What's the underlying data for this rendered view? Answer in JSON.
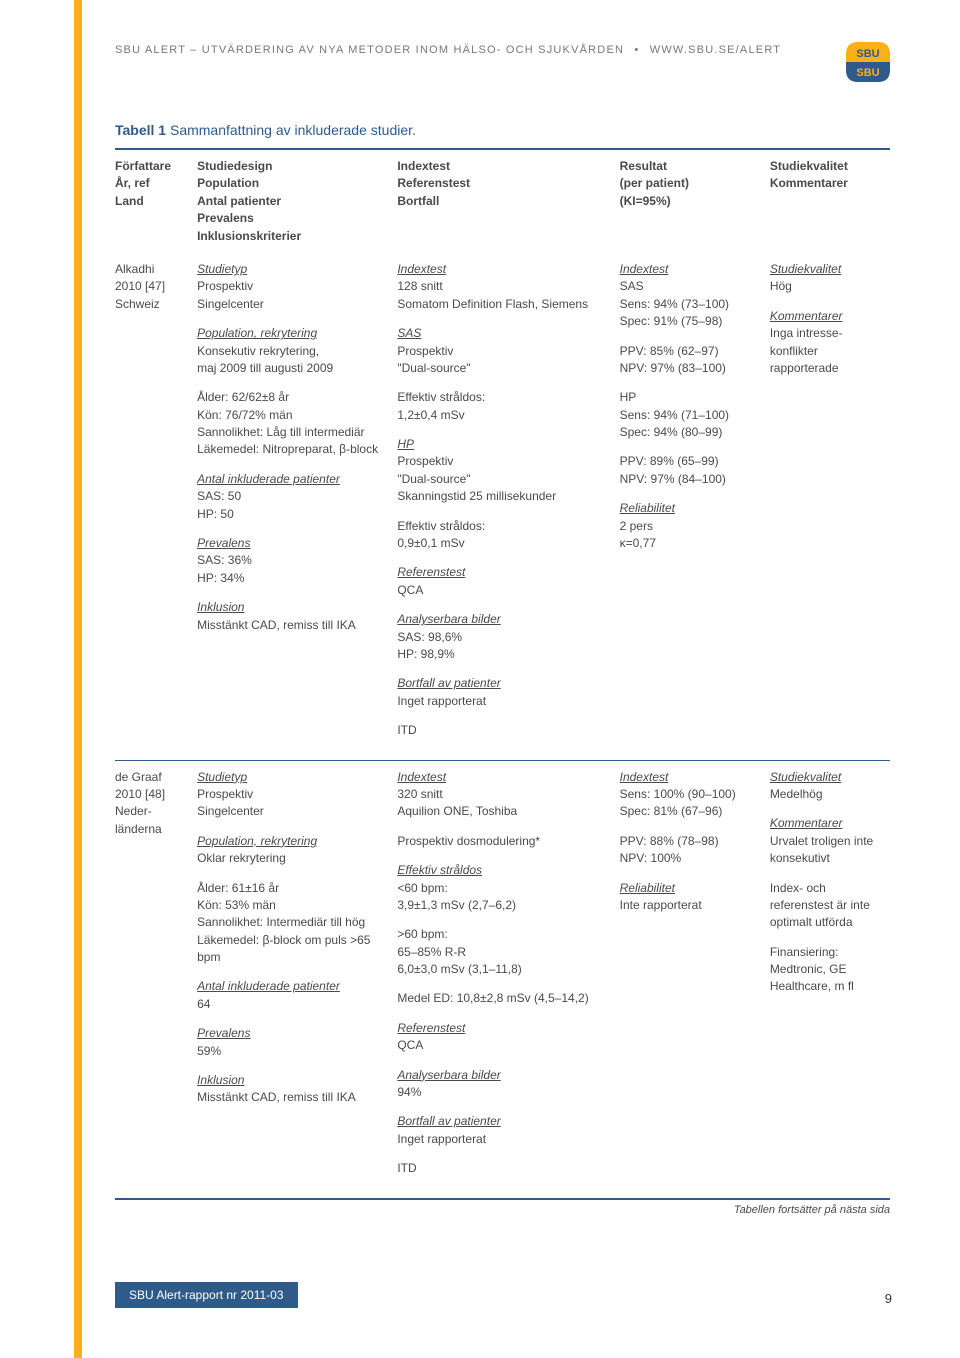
{
  "header": {
    "line": "SBU ALERT – UTVÄRDERING AV NYA METODER INOM HÄLSO- OCH SJUKVÅRDEN",
    "url": "WWW.SBU.SE/ALERT"
  },
  "table": {
    "title_bold": "Tabell 1",
    "title_rest": " Sammanfattning av inkluderade studier.",
    "headers": {
      "c1": "Författare\nÅr, ref\nLand",
      "c2": "Studiedesign\nPopulation\nAntal patienter\nPrevalens\nInklusionskriterier",
      "c3": "Indextest\nReferenstest\nBortfall",
      "c4": "Resultat\n(per patient)\n(KI=95%)",
      "c5": "Studiekvalitet\nKommentarer"
    },
    "rows": [
      {
        "author": "Alkadhi\n2010 [47]\nSchweiz",
        "col2": [
          {
            "lbl": "Studietyp",
            "body": "Prospektiv\nSingelcenter"
          },
          {
            "lbl": "Population, rekrytering",
            "body": "Konsekutiv rekrytering,\nmaj 2009 till augusti 2009"
          },
          {
            "lbl": "",
            "body": "Ålder: 62/62±8 år\nKön: 76/72% män\nSannolikhet: Låg till intermediär\nLäkemedel: Nitropreparat, β-block"
          },
          {
            "lbl": "Antal inkluderade patienter",
            "body": "SAS: 50\nHP: 50"
          },
          {
            "lbl": "Prevalens",
            "body": "SAS: 36%\nHP: 34%"
          },
          {
            "lbl": "Inklusion",
            "body": "Misstänkt CAD, remiss till IKA"
          }
        ],
        "col3": [
          {
            "lbl": "Indextest",
            "body": "128 snitt\nSomatom Definition Flash, Siemens"
          },
          {
            "lbl": "SAS",
            "body": "Prospektiv\n\"Dual-source\""
          },
          {
            "lbl": "",
            "body": "Effektiv stråldos:\n1,2±0,4 mSv"
          },
          {
            "lbl": "HP",
            "body": "Prospektiv\n\"Dual-source\"\nSkanningstid 25 millisekunder"
          },
          {
            "lbl": "",
            "body": "Effektiv stråldos:\n0,9±0,1 mSv"
          },
          {
            "lbl": "Referenstest",
            "body": "QCA"
          },
          {
            "lbl": "Analyserbara bilder",
            "body": "SAS: 98,6%\nHP: 98,9%"
          },
          {
            "lbl": "Bortfall av patienter",
            "body": "Inget rapporterat"
          },
          {
            "lbl": "",
            "body": "ITD"
          }
        ],
        "col4": [
          {
            "lbl": "Indextest",
            "body": "SAS\nSens: 94% (73–100)\nSpec: 91% (75–98)"
          },
          {
            "lbl": "",
            "body": "PPV: 85% (62–97)\nNPV: 97% (83–100)"
          },
          {
            "lbl": "",
            "body": "HP\nSens: 94% (71–100)\nSpec: 94% (80–99)"
          },
          {
            "lbl": "",
            "body": "PPV: 89% (65–99)\nNPV: 97% (84–100)"
          },
          {
            "lbl": "Reliabilitet",
            "body": "2 pers\nκ=0,77"
          }
        ],
        "col5": [
          {
            "lbl": "Studiekvalitet",
            "body": "Hög"
          },
          {
            "lbl": "Kommentarer",
            "body": "Inga intresse­konflikter rapporterade"
          }
        ]
      },
      {
        "author": "de Graaf\n2010 [48]\nNeder-\nländerna",
        "col2": [
          {
            "lbl": "Studietyp",
            "body": "Prospektiv\nSingelcenter"
          },
          {
            "lbl": "Population, rekrytering",
            "body": "Oklar rekrytering"
          },
          {
            "lbl": "",
            "body": "Ålder: 61±16 år\nKön: 53% män\nSannolikhet: Intermediär till hög\nLäkemedel: β-block om puls >65 bpm"
          },
          {
            "lbl": "Antal inkluderade patienter",
            "body": "64"
          },
          {
            "lbl": "Prevalens",
            "body": "59%"
          },
          {
            "lbl": "Inklusion",
            "body": "Misstänkt CAD, remiss till IKA"
          }
        ],
        "col3": [
          {
            "lbl": "Indextest",
            "body": "320 snitt\nAquilion ONE, Toshiba"
          },
          {
            "lbl": "",
            "body": "Prospektiv dosmodulering*"
          },
          {
            "lbl": "Effektiv stråldos",
            "body": "<60 bpm:\n3,9±1,3 mSv (2,7–6,2)"
          },
          {
            "lbl": "",
            "body": ">60 bpm:\n65–85% R-R\n6,0±3,0 mSv (3,1–11,8)"
          },
          {
            "lbl": "",
            "body": "Medel ED: 10,8±2,8 mSv (4,5–14,2)"
          },
          {
            "lbl": "Referenstest",
            "body": "QCA"
          },
          {
            "lbl": "Analyserbara bilder",
            "body": "94%"
          },
          {
            "lbl": "Bortfall av patienter",
            "body": "Inget rapporterat"
          },
          {
            "lbl": "",
            "body": "ITD"
          }
        ],
        "col4": [
          {
            "lbl": "Indextest",
            "body": "Sens: 100% (90–100)\nSpec: 81% (67–96)"
          },
          {
            "lbl": "",
            "body": "PPV: 88% (78–98)\nNPV: 100%"
          },
          {
            "lbl": "Reliabilitet",
            "body": "Inte rapporterat"
          }
        ],
        "col5": [
          {
            "lbl": "Studiekvalitet",
            "body": "Medelhög"
          },
          {
            "lbl": "Kommentarer",
            "body": "Urvalet troligen inte konsekutivt"
          },
          {
            "lbl": "",
            "body": "Index- och referenstest är inte optimalt utförda"
          },
          {
            "lbl": "",
            "body": "Finansiering: Medtronic, GE Healthcare, m fl"
          }
        ]
      }
    ],
    "cont_note": "Tabellen fortsätter på nästa sida"
  },
  "footer": {
    "bar": "SBU Alert-rapport nr 2011-03",
    "page": "9"
  },
  "colors": {
    "accent_blue": "#2e5b8a",
    "accent_gold": "#f9b117",
    "text": "#4a4a4a",
    "grey": "#787878"
  }
}
